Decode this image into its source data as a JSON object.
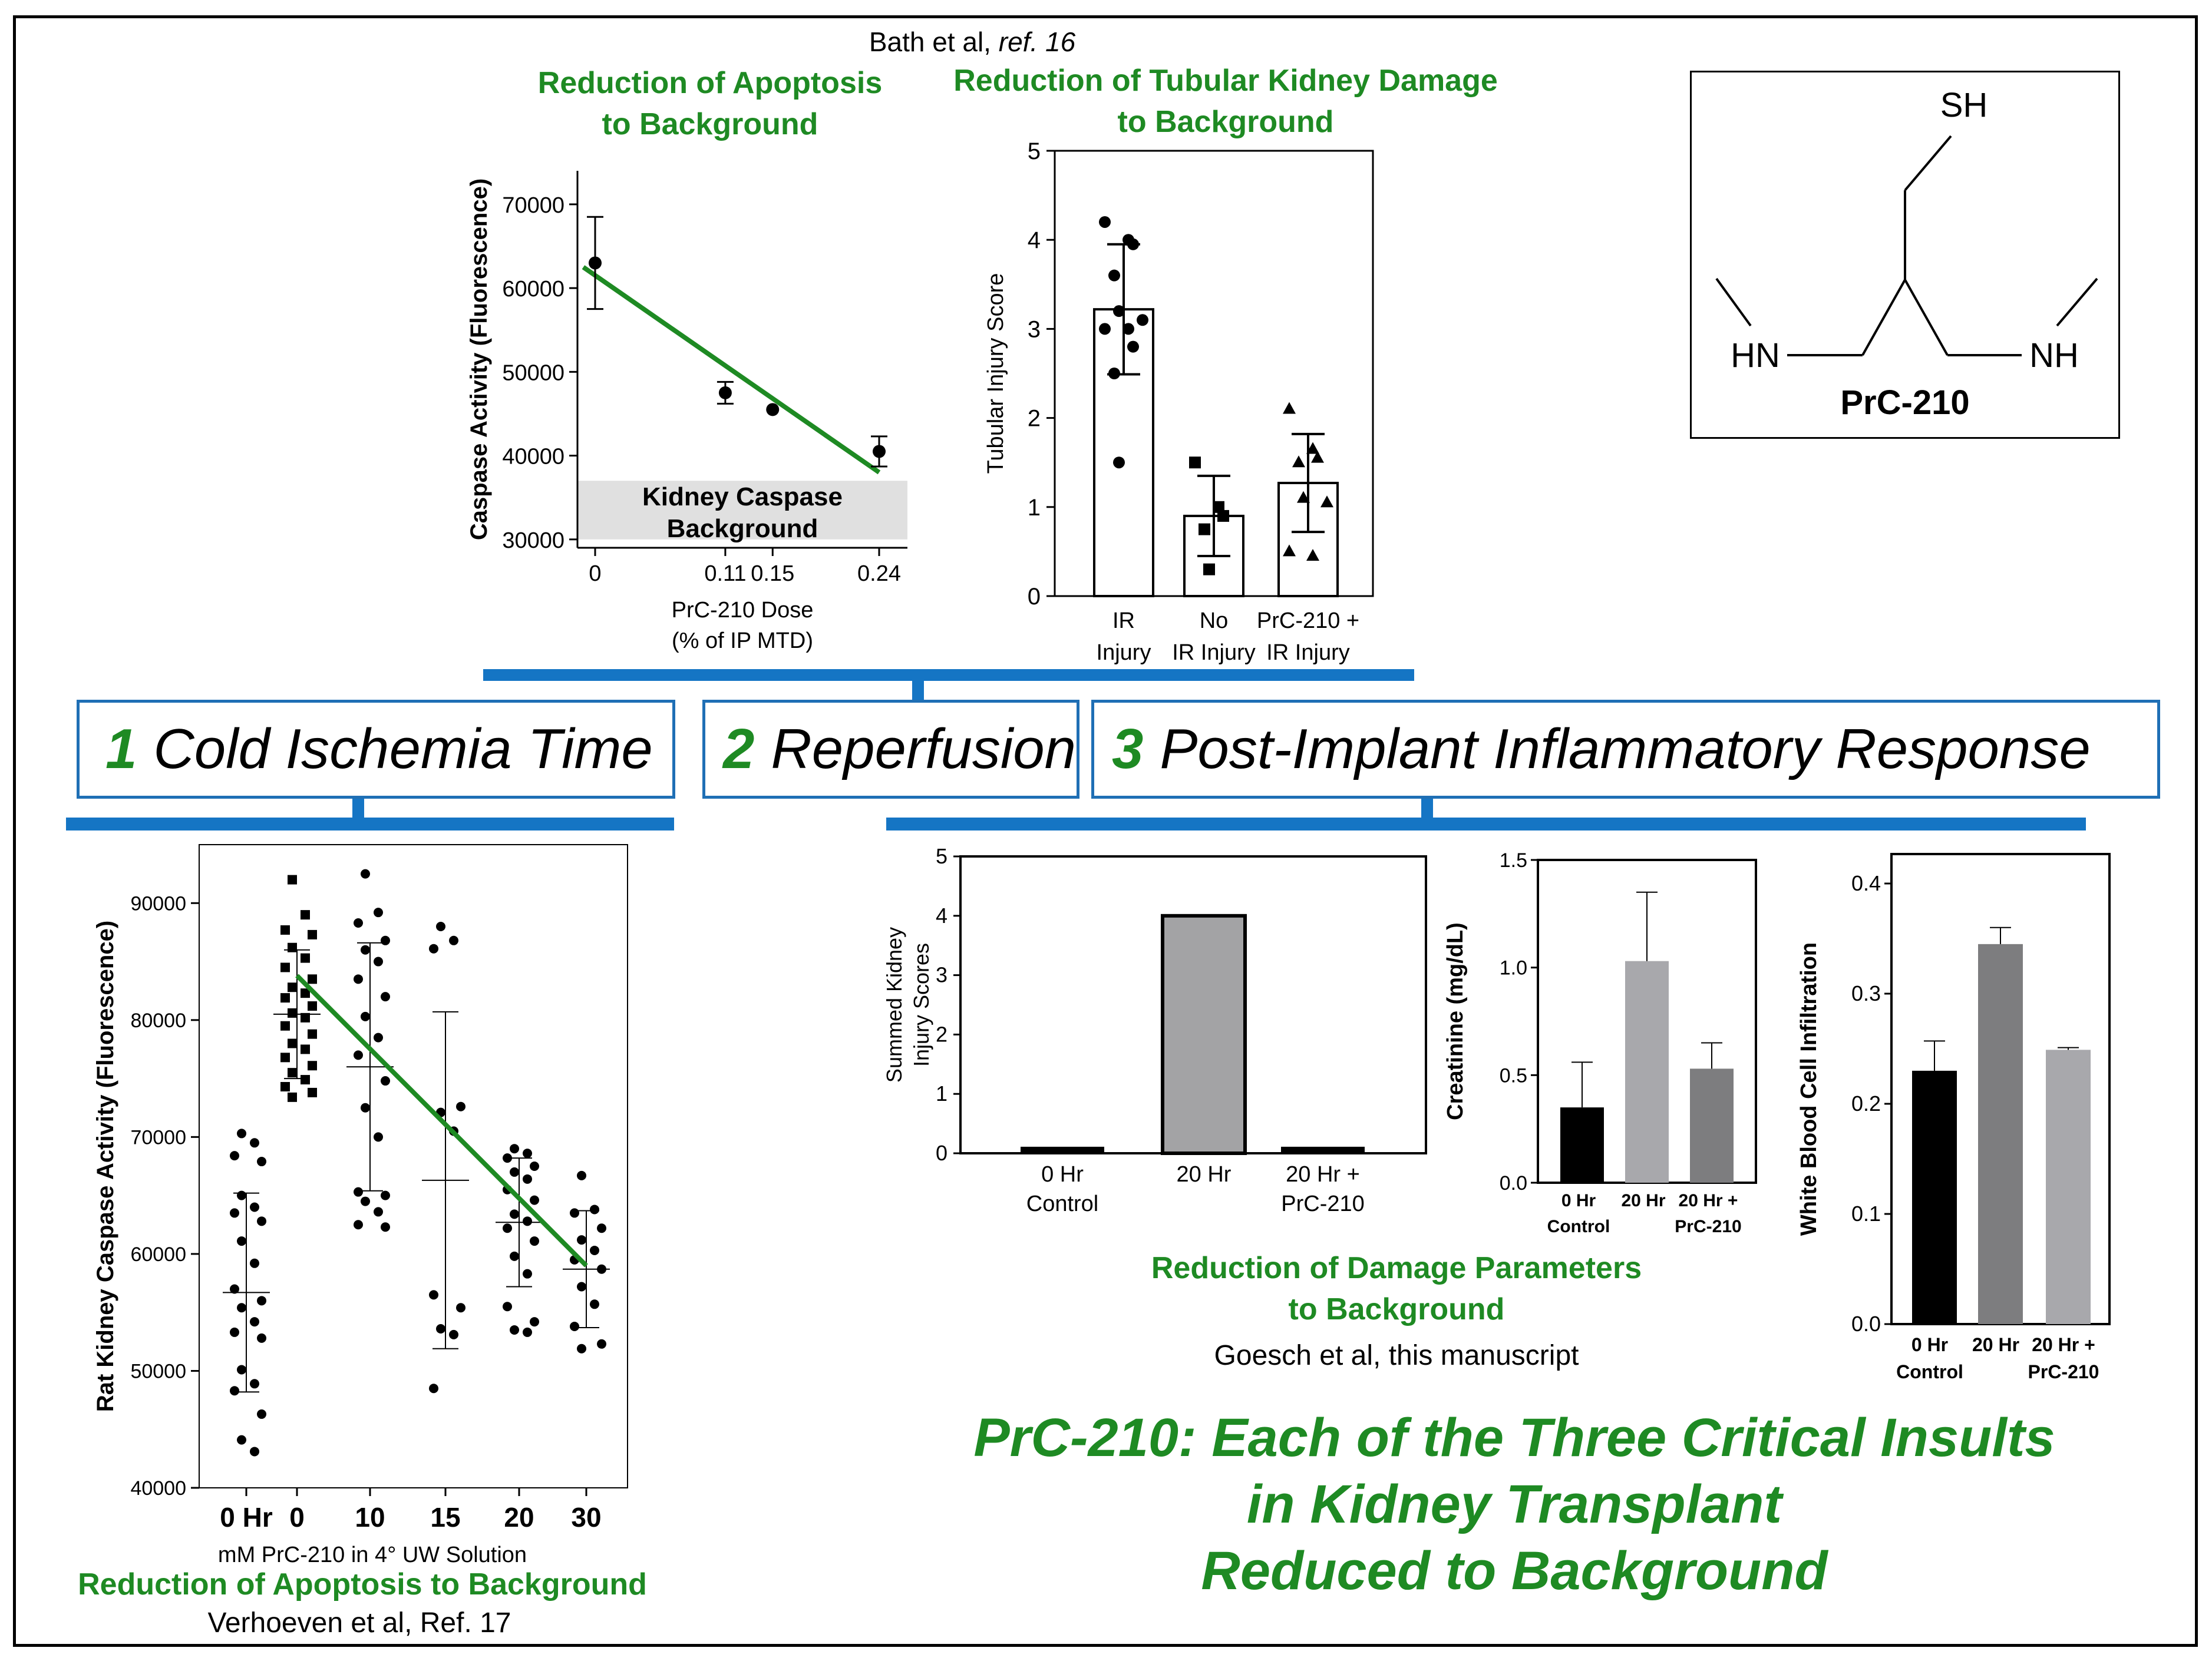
{
  "colors": {
    "green": "#1e8a23",
    "blue": "#1575c4",
    "bar_grey": "#a3a3a5",
    "dark_grey": "#7d7d7f",
    "light_grey": "#a8a8ac",
    "bg_band": "#e0e0e0"
  },
  "citations": {
    "bath_prefix": "Bath et al, ",
    "bath_ref": "ref. 16",
    "verhoeven": "Verhoeven et al, Ref. 17",
    "goesch": "Goesch et al, this manuscript"
  },
  "headings": {
    "apoptosis_top": [
      "Reduction of Apoptosis",
      "to Background"
    ],
    "tubular": [
      "Reduction of Tubular Kidney Damage",
      "to Background"
    ],
    "damage_params": [
      "Reduction of Damage Parameters",
      "to Background"
    ],
    "apoptosis_bottom": "Reduction of Apoptosis to Background"
  },
  "stages": [
    {
      "num": "1",
      "label": "Cold Ischemia Time"
    },
    {
      "num": "2",
      "label": "Reperfusion"
    },
    {
      "num": "3",
      "label": "Post-Implant Inflammatory Response"
    }
  ],
  "molecule": {
    "name": "PrC-210",
    "atoms": {
      "sh": "SH",
      "hn": "HN",
      "nh": "NH"
    }
  },
  "conclusion": [
    "PrC-210: Each of the Three Critical Insults",
    "in Kidney Transplant",
    "Reduced to Background"
  ],
  "chart_data": [
    {
      "id": "caspase_dose",
      "type": "scatter",
      "title": "Reduction of Apoptosis to Background",
      "ylabel": "Caspase Activity (Fluorescence)",
      "xlabel": [
        "PrC-210 Dose",
        "(% of IP MTD)"
      ],
      "x": [
        0,
        0.11,
        0.15,
        0.24
      ],
      "x_tick_labels": [
        "0",
        "0.11",
        "0.15",
        "0.24"
      ],
      "y": [
        63000,
        47500,
        45500,
        40500
      ],
      "y_err": [
        5500,
        1300,
        0,
        1800
      ],
      "ylim": [
        29000,
        74000
      ],
      "y_ticks": [
        30000,
        40000,
        50000,
        60000,
        70000
      ],
      "y_tick_labels": [
        "30000",
        "40000",
        "50000",
        "60000",
        "70000"
      ],
      "trend_line": {
        "x": [
          -0.01,
          0.24
        ],
        "y": [
          62500,
          38000
        ]
      },
      "background_band": {
        "y": [
          30000,
          37000
        ],
        "label": [
          "Kidney Caspase",
          "Background"
        ]
      }
    },
    {
      "id": "tubular_injury",
      "type": "bar",
      "ylabel": "Tubular Injury Score",
      "categories": [
        [
          "IR",
          "Injury"
        ],
        [
          "No",
          "IR Injury"
        ],
        [
          "PrC-210 +",
          "IR Injury"
        ]
      ],
      "values": [
        3.22,
        0.9,
        1.27
      ],
      "errors": [
        0.73,
        0.45,
        0.55
      ],
      "ylim": [
        0,
        5
      ],
      "y_ticks": [
        0,
        1,
        2,
        3,
        4,
        5
      ],
      "points": [
        [
          4.2,
          4.0,
          3.95,
          3.6,
          3.2,
          3.1,
          3.0,
          3.0,
          2.8,
          2.5,
          1.5
        ],
        [
          1.5,
          1.0,
          0.9,
          0.75,
          0.3
        ],
        [
          2.1,
          1.65,
          1.55,
          1.5,
          1.1,
          1.05,
          0.5,
          0.45
        ]
      ],
      "markers": [
        "circle",
        "square",
        "triangle"
      ]
    },
    {
      "id": "summed_kidney",
      "type": "bar",
      "ylabel": [
        "Summed Kidney",
        "Injury Scores"
      ],
      "categories": [
        [
          "0 Hr",
          "Control"
        ],
        [
          "20 Hr",
          ""
        ],
        [
          "20 Hr +",
          "PrC-210"
        ]
      ],
      "values": [
        0.1,
        4.0,
        0.1
      ],
      "ylim": [
        0,
        5
      ],
      "y_ticks": [
        0,
        1,
        2,
        3,
        4,
        5
      ]
    },
    {
      "id": "creatinine",
      "type": "bar",
      "ylabel": "Creatinine (mg/dL)",
      "categories": [
        [
          "0 Hr",
          "Control"
        ],
        [
          "20 Hr",
          ""
        ],
        [
          "20 Hr +",
          "PrC-210"
        ]
      ],
      "values": [
        0.35,
        1.03,
        0.53
      ],
      "errors": [
        0.21,
        0.32,
        0.12
      ],
      "ylim": [
        0,
        1.5
      ],
      "y_ticks": [
        0,
        0.5,
        1.0,
        1.5
      ],
      "y_tick_labels": [
        "0.0",
        "0.5",
        "1.0",
        "1.5"
      ],
      "bar_colors": [
        "#000000",
        "#a8a8ac",
        "#7d7d7f"
      ]
    },
    {
      "id": "wbc",
      "type": "bar",
      "ylabel": "White Blood Cell Infiltration",
      "categories": [
        [
          "0 Hr",
          "Control"
        ],
        [
          "20 Hr",
          ""
        ],
        [
          "20 Hr +",
          "PrC-210"
        ]
      ],
      "values": [
        0.23,
        0.345,
        0.249
      ],
      "errors": [
        0.027,
        0.015,
        0.002
      ],
      "ylim": [
        0,
        0.4
      ],
      "y_ticks": [
        0,
        0.1,
        0.2,
        0.3,
        0.4
      ],
      "y_tick_labels": [
        "0.0",
        "0.1",
        "0.2",
        "0.3",
        "0.4"
      ],
      "bar_colors": [
        "#000000",
        "#7d7d7f",
        "#a8a8ac"
      ]
    },
    {
      "id": "rat_caspase",
      "type": "scatter",
      "ylabel": "Rat Kidney Caspase Activity (Fluorescence)",
      "xlabel": "mM PrC-210 in 4° UW Solution",
      "x_tick_labels": [
        "0 Hr",
        "0",
        "10",
        "15",
        "20",
        "30"
      ],
      "ylim": [
        40000,
        95000
      ],
      "y_ticks": [
        40000,
        50000,
        60000,
        70000,
        80000,
        90000
      ],
      "y_tick_labels": [
        "40000",
        "50000",
        "60000",
        "70000",
        "80000",
        "90000"
      ],
      "means": [
        56700,
        80500,
        76000,
        66300,
        62700,
        58700
      ],
      "errors": [
        8500,
        5500,
        10600,
        14400,
        5500,
        5000
      ],
      "trend_line": {
        "x_index": [
          1,
          5
        ],
        "y": [
          83800,
          59000
        ]
      },
      "points": [
        [
          70300,
          69500,
          68400,
          67900,
          65000,
          64000,
          63500,
          62800,
          61100,
          59200,
          57000,
          56000,
          55400,
          54200,
          53300,
          52800,
          50100,
          48900,
          48300,
          46300,
          44100,
          43100
        ],
        [
          92000,
          89000,
          87700,
          87300,
          86200,
          85300,
          84500,
          83500,
          82800,
          82300,
          81900,
          81200,
          80600,
          80200,
          79500,
          78800,
          78000,
          77500,
          76800,
          76100,
          75500,
          74900,
          74300,
          73800,
          73400
        ],
        [
          92500,
          89200,
          88300,
          86800,
          86000,
          85000,
          83500,
          82000,
          80300,
          78500,
          77000,
          74800,
          72500,
          70000,
          65300,
          65000,
          64500,
          63600,
          62500,
          62300
        ],
        [
          88000,
          86800,
          86100,
          72600,
          72100,
          70500,
          56500,
          55400,
          53600,
          53100,
          48500
        ],
        [
          69000,
          68600,
          68200,
          67500,
          67000,
          66400,
          65500,
          64600,
          63400,
          62800,
          62200,
          61100,
          59800,
          58300,
          55500,
          54200,
          53500,
          53300
        ],
        [
          66700,
          63800,
          63500,
          62200,
          61200,
          60300,
          59500,
          58700,
          57200,
          55700,
          53800,
          52300,
          51900
        ]
      ],
      "markers": [
        "circle",
        "square",
        "circle",
        "circle",
        "circle",
        "circle"
      ]
    }
  ]
}
